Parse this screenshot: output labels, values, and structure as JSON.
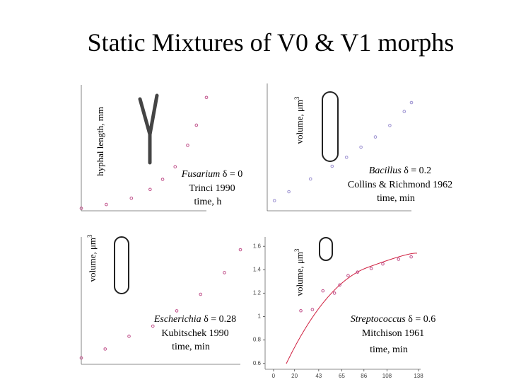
{
  "title": "Static Mixtures of V0 & V1 morphs",
  "chart_data": [
    {
      "type": "scatter",
      "ylabel": "hyphal length, mm",
      "organism": "Fusarium",
      "delta": "δ = 0",
      "source": "Trinci 1990",
      "xlabel": "time, h",
      "x": [
        0,
        20,
        40,
        55,
        65,
        75,
        85,
        92,
        100
      ],
      "values": [
        2,
        5,
        10,
        17,
        25,
        35,
        52,
        68,
        90
      ],
      "xlim": [
        0,
        100
      ],
      "ylim": [
        0,
        100
      ],
      "color": "#c0508a"
    },
    {
      "type": "scatter",
      "ylabel": "volume, μm",
      "ylabel_sup": "3",
      "organism": "Bacillus",
      "delta": "δ = 0.2",
      "source": "Collins & Richmond 1962",
      "xlabel": "time, min",
      "x": [
        5,
        15,
        30,
        45,
        55,
        65,
        75,
        85,
        95,
        100
      ],
      "values": [
        8,
        15,
        25,
        35,
        42,
        50,
        58,
        67,
        78,
        85
      ],
      "xlim": [
        0,
        100
      ],
      "ylim": [
        0,
        100
      ],
      "color": "#9a8fd0"
    },
    {
      "type": "scatter",
      "ylabel": "volume, μm",
      "ylabel_sup": "3",
      "organism": "Escherichia",
      "delta": "δ = 0.28",
      "source": "Kubitschek 1990",
      "xlabel": "time, min",
      "x": [
        0,
        15,
        30,
        45,
        60,
        75,
        90,
        100
      ],
      "values": [
        5,
        12,
        22,
        30,
        42,
        55,
        72,
        90
      ],
      "xlim": [
        0,
        100
      ],
      "ylim": [
        0,
        100
      ],
      "color": "#c0508a"
    },
    {
      "type": "scatter",
      "ylabel": "volume, μm",
      "ylabel_sup": "3",
      "organism": "Streptococcus",
      "delta": "δ = 0.6",
      "source": "Mitchison 1961",
      "xlabel": "time, min",
      "x": [
        26,
        37,
        47,
        58,
        63,
        71,
        80,
        93,
        104,
        119,
        131
      ],
      "values": [
        1.05,
        1.06,
        1.22,
        1.2,
        1.27,
        1.35,
        1.38,
        1.41,
        1.45,
        1.49,
        1.51
      ],
      "xlim": [
        -8,
        140
      ],
      "ylim": [
        0.55,
        1.68
      ],
      "xticks": [
        0,
        20,
        43,
        65,
        86,
        108,
        138
      ],
      "yticks": [
        0.6,
        0.8,
        1,
        1.2,
        1.4,
        1.6
      ],
      "color": "#c0508a"
    }
  ]
}
